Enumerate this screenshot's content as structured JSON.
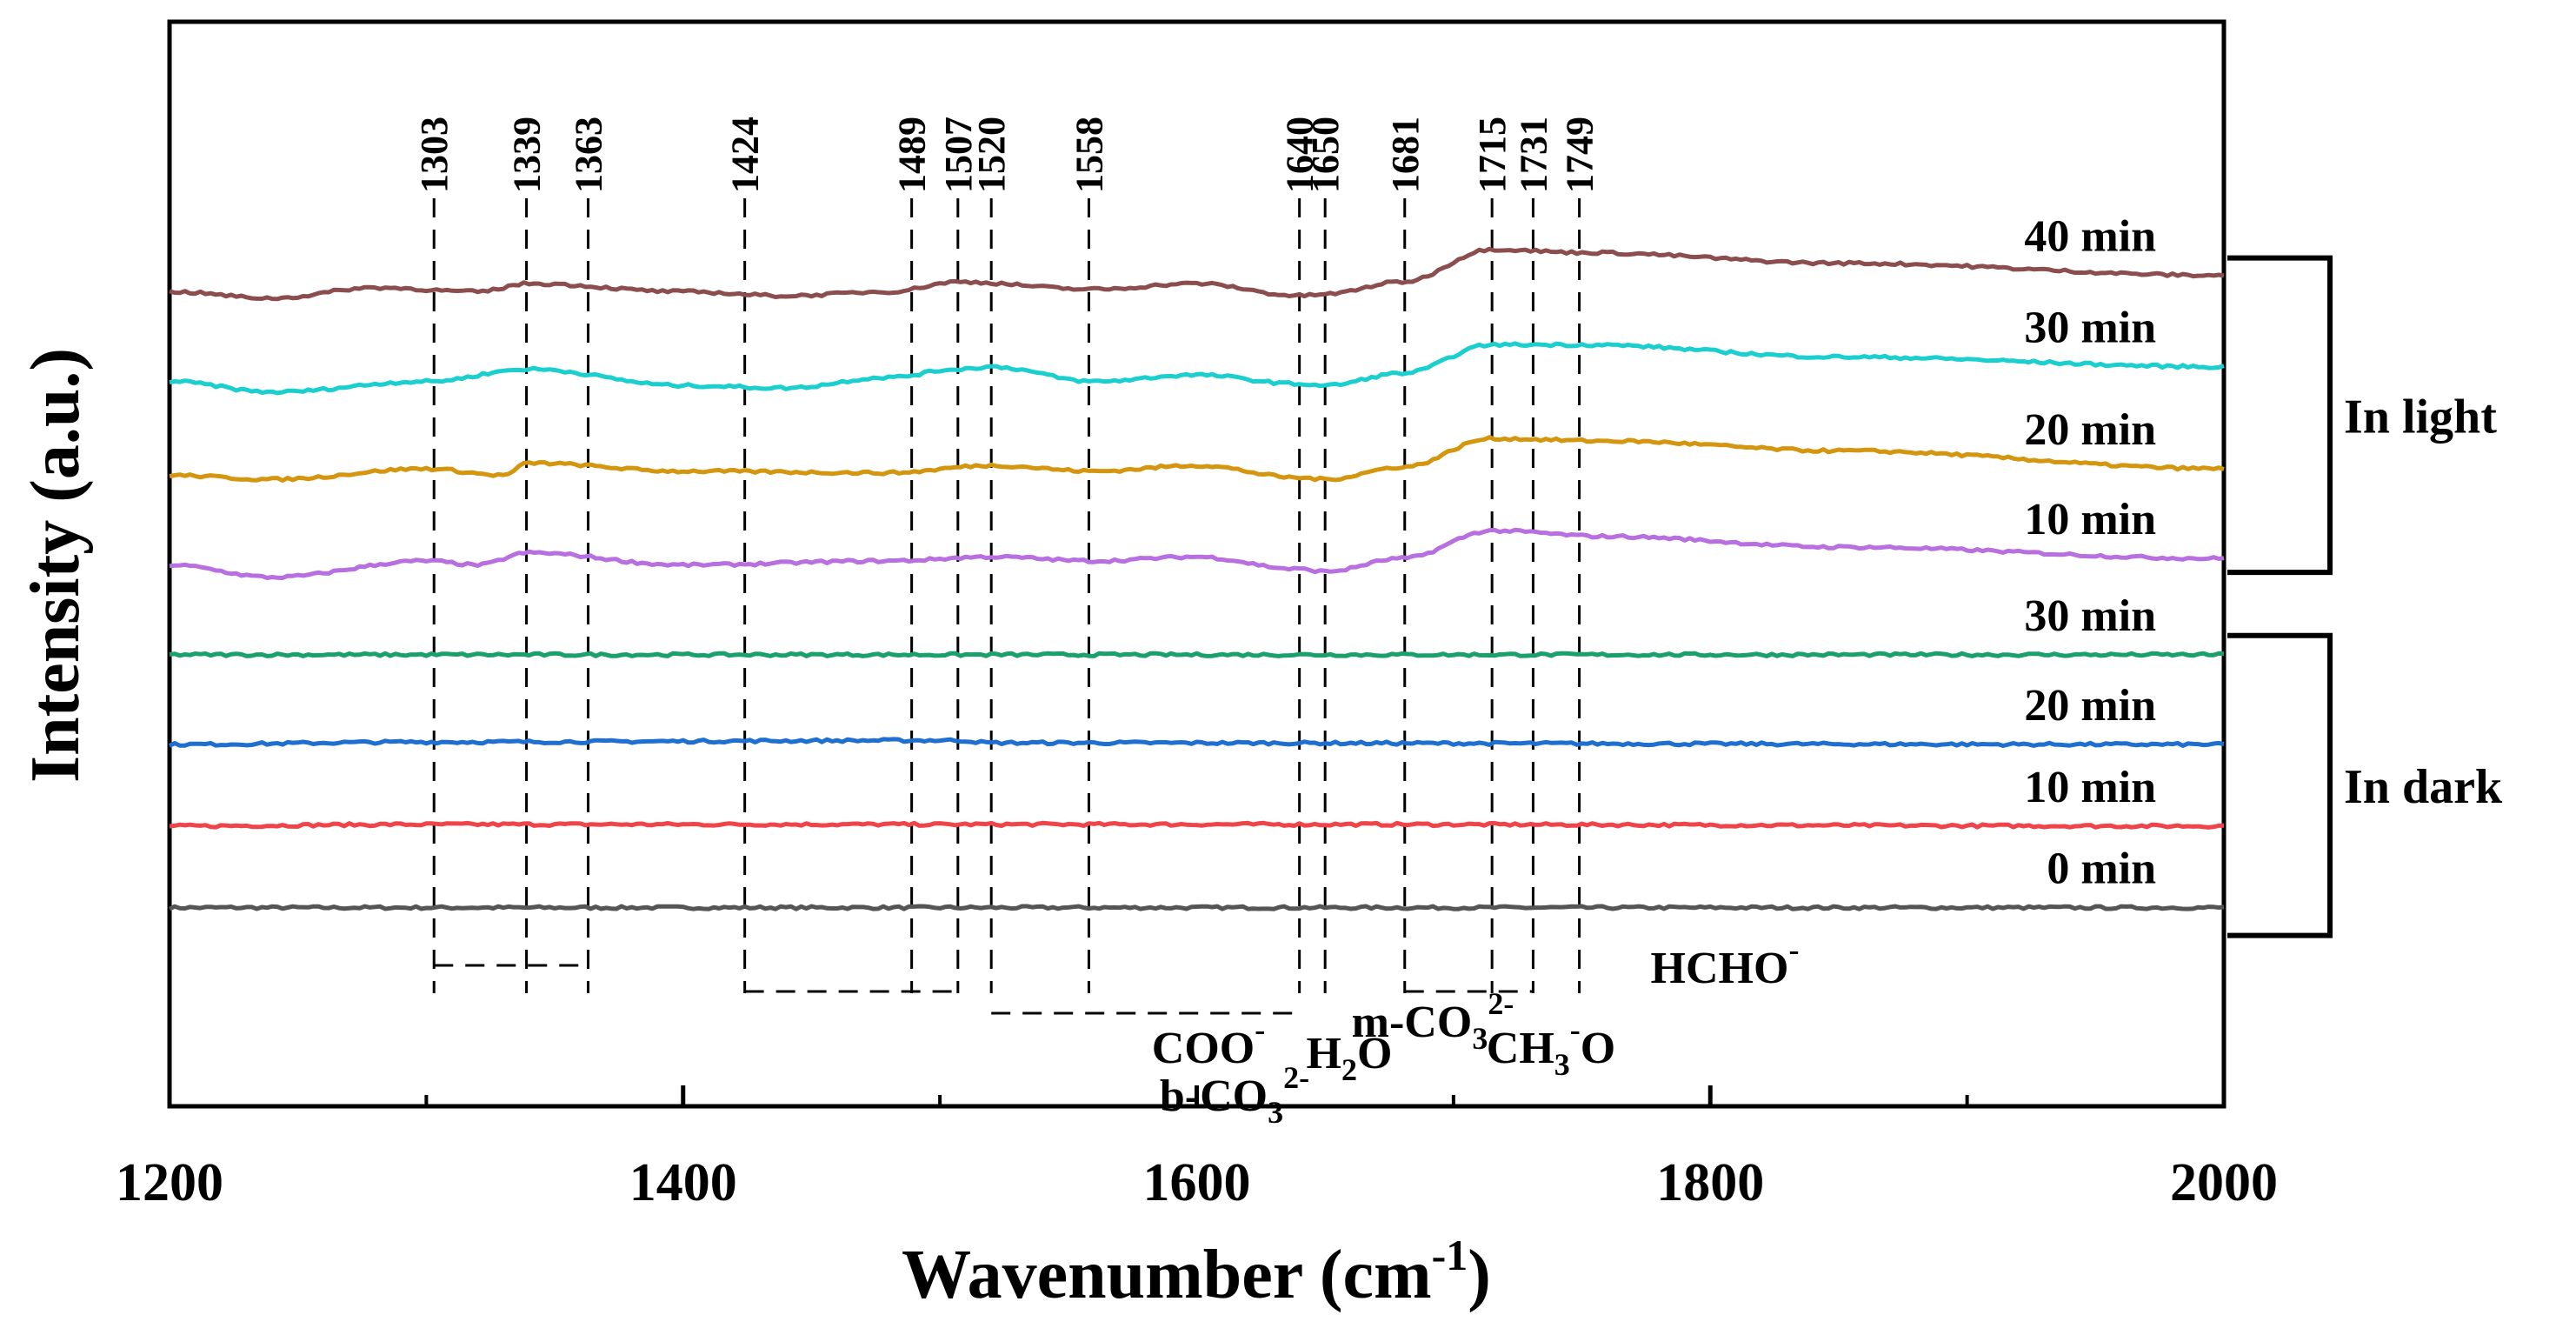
{
  "chart_data": {
    "type": "line",
    "title": "",
    "xlabel": "Wavenumber (cm",
    "xlabel_sup": "-1",
    "xlabel_end": ")",
    "ylabel": "Intensity (a.u.)",
    "xlim": [
      1200,
      2000
    ],
    "ylim": [
      0,
      100
    ],
    "x_ticks": [
      1200,
      1400,
      1600,
      1800,
      2000
    ],
    "x_tick_labels": [
      "1200",
      "1400",
      "1600",
      "1800",
      "2000"
    ],
    "peaks": [
      1303,
      1339,
      1363,
      1424,
      1489,
      1507,
      1520,
      1558,
      1640,
      1650,
      1681,
      1715,
      1731,
      1749
    ],
    "peak_labels": [
      "1303",
      "1339",
      "1363",
      "1424",
      "1489",
      "1507",
      "1520",
      "1558",
      "1640",
      "1650",
      "1681",
      "1715",
      "1731",
      "1749"
    ],
    "series": [
      {
        "name": "0 min",
        "group": "In dark",
        "color": "#555555",
        "baseline": 9.0,
        "profile": [
          [
            1200,
            0
          ],
          [
            2000,
            0
          ]
        ]
      },
      {
        "name": "10 min",
        "group": "In dark",
        "color": "#f0444b",
        "baseline": 19.0,
        "profile": [
          [
            1200,
            0
          ],
          [
            1300,
            0.2
          ],
          [
            1340,
            0.2
          ],
          [
            1650,
            0.2
          ],
          [
            2000,
            0
          ]
        ]
      },
      {
        "name": "20 min",
        "group": "In dark",
        "color": "#1f6fd1",
        "baseline": 29.0,
        "profile": [
          [
            1200,
            0
          ],
          [
            1300,
            0.3
          ],
          [
            1507,
            0.5
          ],
          [
            1520,
            0.2
          ],
          [
            2000,
            0
          ]
        ]
      },
      {
        "name": "30 min",
        "group": "In dark",
        "color": "#1aa06a",
        "baseline": 40.0,
        "profile": [
          [
            1200,
            0
          ],
          [
            2000,
            0
          ]
        ]
      },
      {
        "name": "10 min",
        "group": "In light",
        "color": "#b86fe0",
        "baseline": 51.0,
        "profile": [
          [
            1200,
            0
          ],
          [
            1240,
            -1.5
          ],
          [
            1300,
            0.5
          ],
          [
            1320,
            0
          ],
          [
            1340,
            1.5
          ],
          [
            1400,
            0
          ],
          [
            1480,
            0.5
          ],
          [
            1520,
            1.0
          ],
          [
            1560,
            0.5
          ],
          [
            1600,
            1.0
          ],
          [
            1640,
            -0.5
          ],
          [
            1650,
            -0.8
          ],
          [
            1680,
            0.8
          ],
          [
            1715,
            4.2
          ],
          [
            1760,
            3.5
          ],
          [
            1850,
            2.2
          ],
          [
            2000,
            0.8
          ]
        ]
      },
      {
        "name": "20 min",
        "group": "In light",
        "color": "#d4950f",
        "baseline": 62.0,
        "profile": [
          [
            1200,
            0
          ],
          [
            1240,
            -0.5
          ],
          [
            1300,
            0.8
          ],
          [
            1330,
            0
          ],
          [
            1340,
            1.5
          ],
          [
            1400,
            0.5
          ],
          [
            1480,
            0.3
          ],
          [
            1520,
            1.2
          ],
          [
            1560,
            0.5
          ],
          [
            1600,
            1.2
          ],
          [
            1640,
            -0.3
          ],
          [
            1650,
            -0.5
          ],
          [
            1680,
            1.0
          ],
          [
            1715,
            4.5
          ],
          [
            1760,
            4.2
          ],
          [
            1850,
            3.0
          ],
          [
            2000,
            0.8
          ]
        ]
      },
      {
        "name": "30 min",
        "group": "In light",
        "color": "#1ccfcf",
        "baseline": 73.5,
        "profile": [
          [
            1200,
            0
          ],
          [
            1240,
            -1.3
          ],
          [
            1300,
            0
          ],
          [
            1340,
            1.5
          ],
          [
            1400,
            -0.5
          ],
          [
            1440,
            -0.8
          ],
          [
            1480,
            0.5
          ],
          [
            1507,
            1.5
          ],
          [
            1520,
            1.8
          ],
          [
            1560,
            0
          ],
          [
            1600,
            0.8
          ],
          [
            1640,
            -0.3
          ],
          [
            1650,
            -0.5
          ],
          [
            1680,
            1.0
          ],
          [
            1715,
            4.5
          ],
          [
            1750,
            4.5
          ],
          [
            1850,
            3.0
          ],
          [
            2000,
            1.8
          ]
        ]
      },
      {
        "name": "40 min",
        "group": "In light",
        "color": "#8b4d4d",
        "baseline": 84.5,
        "profile": [
          [
            1200,
            0
          ],
          [
            1240,
            -0.8
          ],
          [
            1280,
            0.5
          ],
          [
            1320,
            0
          ],
          [
            1340,
            1.0
          ],
          [
            1400,
            0
          ],
          [
            1440,
            -0.5
          ],
          [
            1480,
            0
          ],
          [
            1507,
            1.2
          ],
          [
            1560,
            0.3
          ],
          [
            1600,
            1.0
          ],
          [
            1640,
            -0.5
          ],
          [
            1650,
            -0.3
          ],
          [
            1680,
            1.2
          ],
          [
            1715,
            5.2
          ],
          [
            1750,
            4.8
          ],
          [
            1850,
            3.5
          ],
          [
            2000,
            2.0
          ]
        ]
      }
    ],
    "groups": [
      {
        "label": "In light"
      },
      {
        "label": "In dark"
      }
    ],
    "species": [
      {
        "label": "COO",
        "sup": "-",
        "sub": "",
        "sub_after": "",
        "peaks": [
          1303,
          1339,
          1363
        ]
      },
      {
        "label": "m-CO",
        "sup": "2-",
        "sub": "3",
        "sub_after": "",
        "peaks": [
          1424,
          1489,
          1507
        ]
      },
      {
        "label": "b-CO",
        "sup": "2-",
        "sub": "3",
        "sub_after": "",
        "peaks": [
          1520,
          1558,
          1640
        ]
      },
      {
        "label": "H",
        "sup": "",
        "sub": "2",
        "sub_after": "O",
        "peaks": [
          1650
        ]
      },
      {
        "label": "CH",
        "sup": "-",
        "sub": "3",
        "sub_after": "O",
        "peaks": [
          1681,
          1715,
          1731
        ]
      },
      {
        "label": "HCHO",
        "sup": "-",
        "sub": "",
        "sub_after": "",
        "peaks": [
          1749
        ]
      }
    ]
  }
}
